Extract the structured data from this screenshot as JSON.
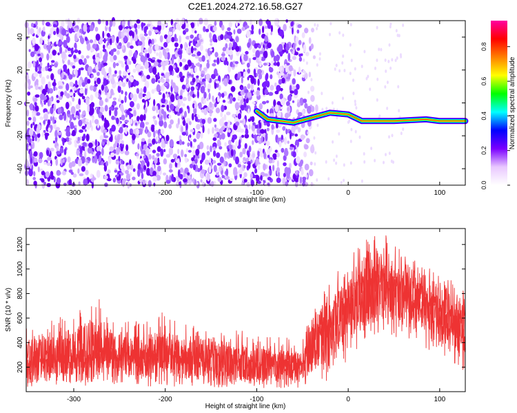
{
  "title": "C2E1.2024.272.16.58.G27",
  "chart_data": [
    {
      "type": "heatmap",
      "xlabel": "Height of straight line (km)",
      "ylabel": "Frequency (Hz)",
      "xlim": [
        -352,
        128
      ],
      "ylim": [
        -50,
        50
      ],
      "xticks": [
        -300,
        -200,
        -100,
        0,
        100
      ],
      "yticks": [
        -40,
        -20,
        0,
        20,
        40
      ],
      "noise_region_x": [
        -352,
        -52
      ],
      "signal_track": [
        {
          "x": -100,
          "y": -5
        },
        {
          "x": -88,
          "y": -10
        },
        {
          "x": -60,
          "y": -12
        },
        {
          "x": -40,
          "y": -9
        },
        {
          "x": -20,
          "y": -6
        },
        {
          "x": 0,
          "y": -7
        },
        {
          "x": 15,
          "y": -11
        },
        {
          "x": 50,
          "y": -11
        },
        {
          "x": 85,
          "y": -10
        },
        {
          "x": 100,
          "y": -11
        },
        {
          "x": 128,
          "y": -11
        }
      ],
      "colorbar": {
        "label": "Normalized spectral amplitude",
        "range": [
          0,
          0.95
        ],
        "ticks": [
          0.0,
          0.2,
          0.4,
          0.6,
          0.8
        ],
        "tick_labels": [
          "0.0",
          "0.2",
          "0.4",
          "0.6",
          "0.8"
        ],
        "colors": [
          "#ffffff",
          "#e9c8ff",
          "#7a00ff",
          "#0000ff",
          "#00ffff",
          "#00ff00",
          "#ffff00",
          "#ff8000",
          "#ff0000",
          "#ff00a0"
        ]
      }
    },
    {
      "type": "line",
      "xlabel": "Height of straight line (km)",
      "ylabel": "SNR (10 * v/v)",
      "xlim": [
        -352,
        128
      ],
      "ylim": [
        0,
        1330
      ],
      "xticks": [
        -300,
        -200,
        -100,
        0,
        100
      ],
      "yticks": [
        200,
        400,
        600,
        800,
        1000,
        1200
      ],
      "color": "#ee3333",
      "envelope": [
        {
          "x": -350,
          "low": 40,
          "mean": 230,
          "high": 560
        },
        {
          "x": -330,
          "low": 60,
          "mean": 225,
          "high": 580
        },
        {
          "x": -300,
          "low": 40,
          "mean": 235,
          "high": 680
        },
        {
          "x": -275,
          "low": 50,
          "mean": 250,
          "high": 780
        },
        {
          "x": -250,
          "low": 50,
          "mean": 245,
          "high": 620
        },
        {
          "x": -225,
          "low": 40,
          "mean": 235,
          "high": 580
        },
        {
          "x": -200,
          "low": 40,
          "mean": 240,
          "high": 660
        },
        {
          "x": -175,
          "low": 30,
          "mean": 225,
          "high": 540
        },
        {
          "x": -150,
          "low": 30,
          "mean": 220,
          "high": 600
        },
        {
          "x": -125,
          "low": 20,
          "mean": 215,
          "high": 520
        },
        {
          "x": -100,
          "low": 20,
          "mean": 205,
          "high": 470
        },
        {
          "x": -75,
          "low": 20,
          "mean": 200,
          "high": 450
        },
        {
          "x": -50,
          "low": 30,
          "mean": 210,
          "high": 430
        },
        {
          "x": -40,
          "low": 60,
          "mean": 330,
          "high": 700
        },
        {
          "x": -30,
          "low": 100,
          "mean": 480,
          "high": 900
        },
        {
          "x": -20,
          "low": 50,
          "mean": 520,
          "high": 950
        },
        {
          "x": -10,
          "low": 80,
          "mean": 560,
          "high": 1000
        },
        {
          "x": 0,
          "low": 280,
          "mean": 680,
          "high": 1100
        },
        {
          "x": 20,
          "low": 400,
          "mean": 830,
          "high": 1250
        },
        {
          "x": 40,
          "low": 480,
          "mean": 880,
          "high": 1300
        },
        {
          "x": 60,
          "low": 420,
          "mean": 820,
          "high": 1150
        },
        {
          "x": 80,
          "low": 360,
          "mean": 740,
          "high": 1050
        },
        {
          "x": 100,
          "low": 300,
          "mean": 660,
          "high": 950
        },
        {
          "x": 115,
          "low": 230,
          "mean": 600,
          "high": 900
        },
        {
          "x": 128,
          "low": 160,
          "mean": 560,
          "high": 850
        }
      ]
    }
  ]
}
